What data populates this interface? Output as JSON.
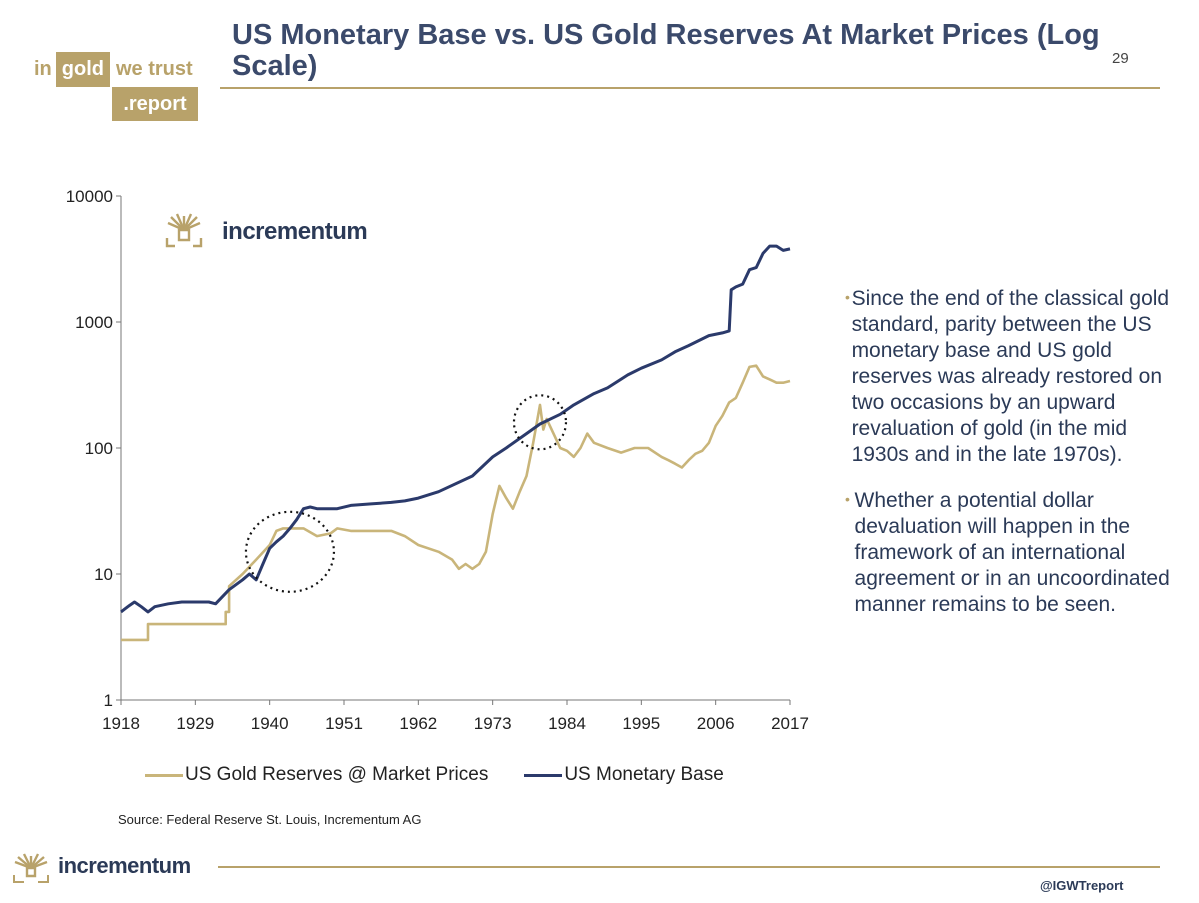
{
  "header": {
    "logo": {
      "in": "in",
      "gold": "gold",
      "we_trust": "we trust",
      "report": ".report"
    },
    "title": "US Monetary Base vs. US Gold Reserves At Market Prices (Log Scale)",
    "page_number": "29"
  },
  "colors": {
    "gold": "#b8a26a",
    "navy": "#2b3a6b",
    "text": "#2b3a57"
  },
  "chart_data": {
    "type": "line",
    "title": "US Monetary Base vs. US Gold Reserves At Market Prices (Log Scale)",
    "xlabel": "",
    "ylabel": "",
    "y_scale": "log",
    "ylim": [
      1,
      10000
    ],
    "xlim": [
      1918,
      2017
    ],
    "y_ticks": [
      "10000",
      "1000",
      "100",
      "10",
      "1"
    ],
    "x_ticks": [
      "1918",
      "1929",
      "1940",
      "1951",
      "1962",
      "1973",
      "1984",
      "1995",
      "2006",
      "2017"
    ],
    "watermark": "incrementum",
    "grid": false,
    "legend_position": "bottom",
    "series": [
      {
        "name": "US Gold Reserves @ Market Prices",
        "color": "#c9b57a",
        "x": [
          1918,
          1922,
          1922,
          1933.5,
          1933.5,
          1934,
          1934,
          1936,
          1938,
          1940,
          1941,
          1942,
          1945,
          1947,
          1949,
          1950,
          1952,
          1955,
          1958,
          1960,
          1962,
          1965,
          1967,
          1968,
          1969,
          1970,
          1971,
          1972,
          1973,
          1974,
          1975,
          1976,
          1977,
          1978,
          1979,
          1980,
          1980.5,
          1981,
          1982,
          1983,
          1984,
          1985,
          1986,
          1987,
          1988,
          1990,
          1992,
          1994,
          1996,
          1998,
          1999,
          2000,
          2001,
          2002,
          2003,
          2004,
          2005,
          2006,
          2007,
          2008,
          2009,
          2010,
          2011,
          2012,
          2013,
          2014,
          2015,
          2016,
          2017
        ],
        "values": [
          3,
          3,
          4,
          4,
          5,
          5,
          8,
          10,
          13,
          17,
          22,
          23,
          23,
          20,
          21,
          23,
          22,
          22,
          22,
          20,
          17,
          15,
          13,
          11,
          12,
          11,
          12,
          15,
          30,
          50,
          40,
          33,
          45,
          60,
          110,
          220,
          140,
          170,
          130,
          100,
          95,
          85,
          100,
          130,
          110,
          100,
          92,
          100,
          100,
          85,
          80,
          75,
          70,
          80,
          90,
          95,
          110,
          150,
          180,
          230,
          250,
          330,
          440,
          450,
          370,
          350,
          330,
          330,
          340
        ]
      },
      {
        "name": "US Monetary Base",
        "color": "#2b3a6b",
        "x": [
          1918,
          1919,
          1920,
          1921,
          1922,
          1923,
          1925,
          1927,
          1929,
          1931,
          1932,
          1934,
          1936,
          1937,
          1938,
          1939,
          1940,
          1941,
          1942,
          1943,
          1944,
          1945,
          1946,
          1947,
          1948,
          1950,
          1952,
          1955,
          1958,
          1960,
          1962,
          1965,
          1970,
          1973,
          1975,
          1978,
          1980,
          1983,
          1985,
          1988,
          1990,
          1993,
          1995,
          1998,
          2000,
          2002,
          2005,
          2007,
          2008,
          2008.3,
          2009,
          2010,
          2011,
          2012,
          2013,
          2014,
          2015,
          2016,
          2017
        ],
        "values": [
          5,
          5.5,
          6,
          5.5,
          5,
          5.5,
          5.8,
          6,
          6,
          6,
          5.8,
          7.5,
          9,
          10,
          9,
          12,
          16,
          18,
          20,
          23,
          27,
          33,
          34,
          33,
          33,
          33,
          35,
          36,
          37,
          38,
          40,
          45,
          60,
          85,
          100,
          130,
          155,
          185,
          220,
          270,
          300,
          380,
          430,
          500,
          580,
          650,
          780,
          820,
          850,
          1800,
          1900,
          2000,
          2600,
          2700,
          3500,
          4000,
          4000,
          3700,
          3800
        ]
      }
    ],
    "annotations": [
      "dotted-circle-1940s",
      "dotted-circle-1980"
    ]
  },
  "bullets": [
    "Since the end of the classical gold standard, parity between the US monetary base and US gold reserves was already restored on two occasions  by an upward revaluation of gold (in the mid 1930s and in the late 1970s).",
    "Whether a potential dollar devaluation will happen in the framework of an international agreement or in an uncoordinated manner remains to be seen."
  ],
  "legend": {
    "gold_label": "US Gold Reserves @ Market Prices",
    "base_label": "US Monetary Base"
  },
  "source": "Source: Federal Reserve St. Louis, Incrementum AG",
  "footer": {
    "brand": "incrementum",
    "handle": "@IGWTreport"
  }
}
